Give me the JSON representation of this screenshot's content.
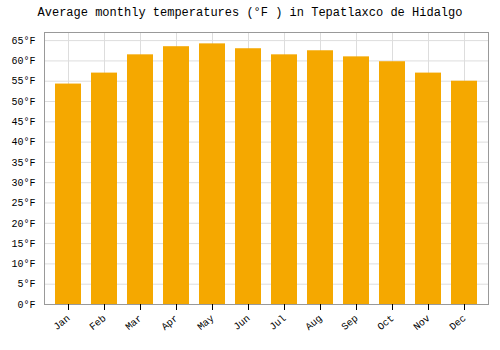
{
  "chart_data": {
    "type": "bar",
    "title": "Average monthly temperatures (°F ) in Tepatlaxco de Hidalgo",
    "categories": [
      "Jan",
      "Feb",
      "Mar",
      "Apr",
      "May",
      "Jun",
      "Jul",
      "Aug",
      "Sep",
      "Oct",
      "Nov",
      "Dec"
    ],
    "values": [
      54.3,
      57.0,
      61.5,
      63.5,
      64.2,
      63.0,
      61.5,
      62.5,
      61.0,
      59.8,
      57.0,
      55.0
    ],
    "color": "#F5A800",
    "ylim": [
      0,
      67
    ],
    "yticks": [
      {
        "value": 0,
        "label": "0°F"
      },
      {
        "value": 5,
        "label": "5°F"
      },
      {
        "value": 10,
        "label": "10°F"
      },
      {
        "value": 15,
        "label": "15°F"
      },
      {
        "value": 20,
        "label": "20°F"
      },
      {
        "value": 25,
        "label": "25°F"
      },
      {
        "value": 30,
        "label": "30°F"
      },
      {
        "value": 35,
        "label": "35°F"
      },
      {
        "value": 40,
        "label": "40°F"
      },
      {
        "value": 45,
        "label": "45°F"
      },
      {
        "value": 50,
        "label": "50°F"
      },
      {
        "value": 55,
        "label": "55°F"
      },
      {
        "value": 60,
        "label": "60°F"
      },
      {
        "value": 65,
        "label": "65°F"
      }
    ],
    "grid": true
  }
}
